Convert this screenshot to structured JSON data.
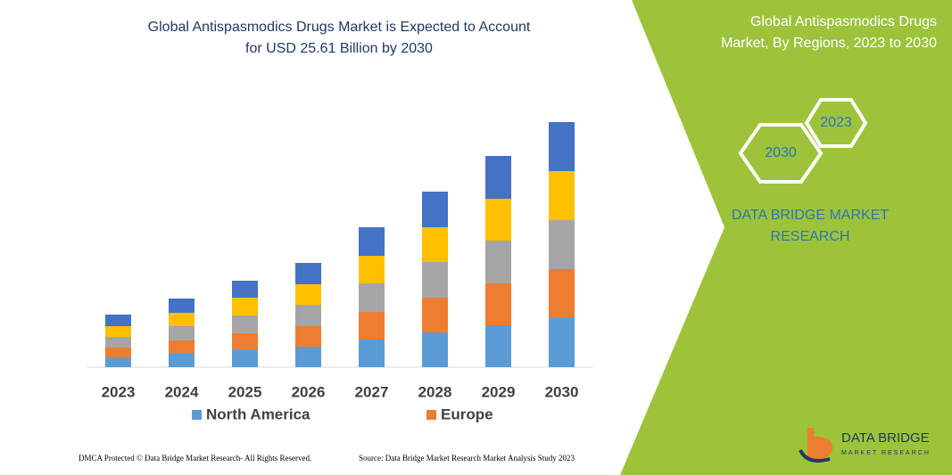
{
  "chart_data": {
    "type": "stacked_bar",
    "title": [
      "Global Antispasmodics Drugs Market is Expected to Account",
      "for USD 25.61 Billion by 2030"
    ],
    "categories": [
      "2023",
      "2024",
      "2025",
      "2026",
      "2027",
      "2028",
      "2029",
      "2030"
    ],
    "series": [
      {
        "name": "North America",
        "color": "#5b9bd5",
        "values": [
          10,
          15,
          19,
          23,
          31,
          39,
          47,
          55
        ]
      },
      {
        "name": "Europe",
        "color": "#ed7d31",
        "values": [
          12,
          15,
          19,
          23,
          31,
          39,
          47,
          55
        ]
      },
      {
        "color": "#a5a5a5",
        "values": [
          12,
          16,
          20,
          24,
          32,
          40,
          48,
          55
        ]
      },
      {
        "color": "#ffc000",
        "values": [
          12,
          15,
          20,
          23,
          31,
          39,
          47,
          55
        ]
      },
      {
        "color": "#4472c4",
        "values": [
          13,
          16,
          19,
          24,
          32,
          40,
          48,
          55
        ]
      }
    ],
    "ylim": [
      0,
      280
    ]
  },
  "panel": {
    "title": [
      "Global Antispasmodics Drugs",
      "Market, By Regions, 2023 to 2030"
    ],
    "hex_left": "2030",
    "hex_right": "2023",
    "brand": [
      "DATA BRIDGE MARKET",
      "RESEARCH"
    ]
  },
  "logo": {
    "name": "DATA BRIDGE",
    "tagline": "MARKET RESEARCH"
  },
  "footer": {
    "left": "DMCA Protected © Data Bridge Market Research-  All Rights Reserved.",
    "right": "Source: Data Bridge Market Research  Market Analysis Study 2023"
  }
}
